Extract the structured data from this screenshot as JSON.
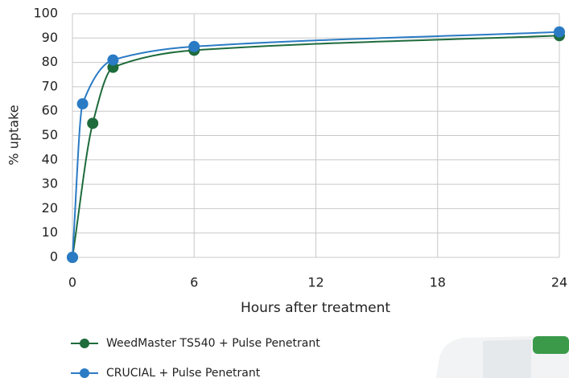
{
  "chart_data": {
    "type": "line",
    "x_label": "Hours after treatment",
    "y_label": "% uptake",
    "series": [
      {
        "name": "WeedMaster TS540 + Pulse Penetrant",
        "color": "#1e6b3c",
        "x": [
          0,
          1,
          2,
          6,
          24
        ],
        "values": [
          0,
          55,
          78,
          85,
          91
        ]
      },
      {
        "name": "CRUCIAL + Pulse Penetrant",
        "color": "#2a7bc4",
        "x": [
          0,
          0.5,
          2,
          6,
          24
        ],
        "values": [
          0,
          63,
          81,
          86.5,
          92.5
        ]
      }
    ],
    "xlim": [
      0,
      24
    ],
    "xticks": [
      0,
      6,
      12,
      18,
      24
    ],
    "ylim": [
      0,
      100
    ],
    "yticks": [
      0,
      10,
      20,
      30,
      40,
      50,
      60,
      70,
      80,
      90,
      100
    ],
    "grid": true,
    "legend": "bottom"
  }
}
